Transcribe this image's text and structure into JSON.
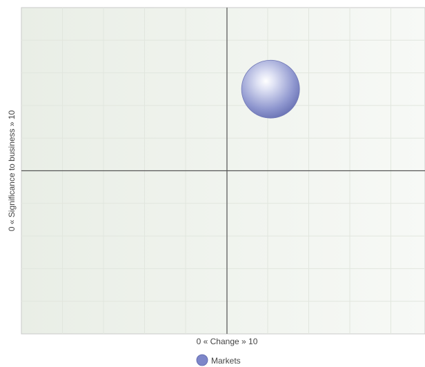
{
  "chart_data": {
    "type": "bubble",
    "title": "",
    "xlabel": "0  «  Change  »  10",
    "ylabel": "0  «  Significance to business  »  10",
    "xlim": [
      0,
      10
    ],
    "ylim": [
      0,
      10
    ],
    "grid": true,
    "legend": "bottom",
    "series": [
      {
        "name": "Markets",
        "color": "#7d86c9",
        "points": [
          {
            "x": 6.1,
            "y": 7.5,
            "size": 1
          }
        ]
      }
    ]
  }
}
